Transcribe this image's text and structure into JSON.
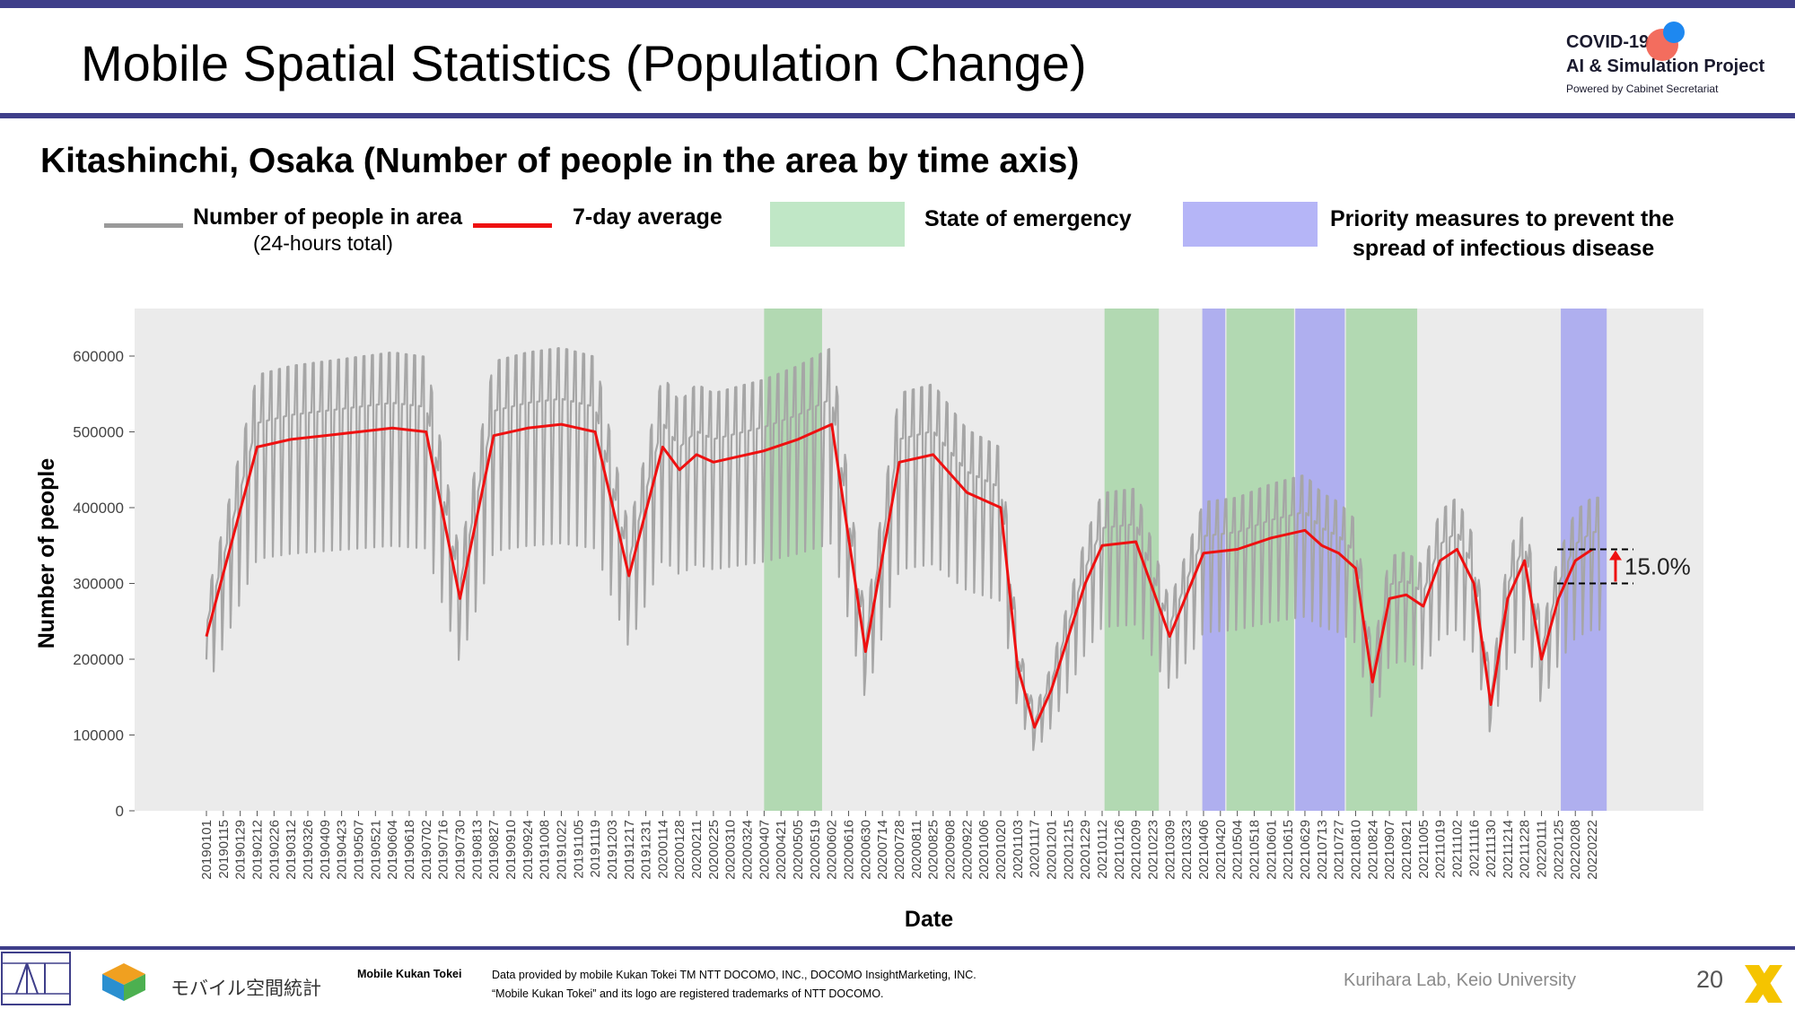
{
  "slide": {
    "title": "Mobile Spatial Statistics (Population Change)",
    "subtitle": "Kitashinchi, Osaka (Number of people in the area by time axis)",
    "page_number": "20",
    "lab": "Kurihara Lab, Keio University"
  },
  "logo": {
    "line1": "COVID-19",
    "line2": "AI & Simulation Project",
    "line3": "Powered by Cabinet Secretariat"
  },
  "legend": {
    "people_label": "Number of people in area",
    "people_sub": "(24-hours total)",
    "avg_label": "7-day average",
    "emergency_label": "State of emergency",
    "priority_label_1": "Priority measures to prevent the",
    "priority_label_2": "spread of infectious disease"
  },
  "footer": {
    "brand": "Mobile Kukan Tokei",
    "brand_jp": "モバイル空間統計",
    "credit1": "Data provided by mobile Kukan Tokei TM NTT DOCOMO, INC., DOCOMO InsightMarketing, INC.",
    "credit2": "“Mobile Kukan Tokei” and its logo are registered trademarks of NTT DOCOMO."
  },
  "colors": {
    "header_bar": "#3f3f8a",
    "daily_line": "#a6a6a6",
    "avg_line": "#ee1111",
    "emergency": "#b5e0b5",
    "priority": "#aaaaf2",
    "plot_bg": "#ebebeb"
  },
  "chart_data": {
    "type": "line",
    "title": "",
    "xlabel": "Date",
    "ylabel": "Number of people",
    "ylim": [
      0,
      660000
    ],
    "yticks": [
      0,
      100000,
      200000,
      300000,
      400000,
      500000,
      600000
    ],
    "ytick_labels": [
      "0",
      "100000",
      "200000",
      "300000",
      "400000",
      "500000",
      "600000"
    ],
    "x_ticks": [
      "20190101",
      "20190115",
      "20190129",
      "20190212",
      "20190226",
      "20190312",
      "20190326",
      "20190409",
      "20190423",
      "20190507",
      "20190521",
      "20190604",
      "20190618",
      "20190702",
      "20190716",
      "20190730",
      "20190813",
      "20190827",
      "20190910",
      "20190924",
      "20191008",
      "20191022",
      "20191105",
      "20191119",
      "20191203",
      "20191217",
      "20191231",
      "20200114",
      "20200128",
      "20200211",
      "20200225",
      "20200310",
      "20200324",
      "20200407",
      "20200421",
      "20200505",
      "20200519",
      "20200602",
      "20200616",
      "20200630",
      "20200714",
      "20200728",
      "20200811",
      "20200825",
      "20200908",
      "20200922",
      "20201006",
      "20201020",
      "20201103",
      "20201117",
      "20201201",
      "20201215",
      "20201229",
      "20210112",
      "20210126",
      "20210209",
      "20210223",
      "20210309",
      "20210323",
      "20210406",
      "20210420",
      "20210504",
      "20210518",
      "20210601",
      "20210615",
      "20210629",
      "20210713",
      "20210727",
      "20210810",
      "20210824",
      "20210907",
      "20210921",
      "20211005",
      "20211019",
      "20211102",
      "20211116",
      "20211130",
      "20211214",
      "20211228",
      "20220111",
      "20220125",
      "20220208",
      "20220222"
    ],
    "grid": false,
    "series": [
      {
        "name": "7-day average",
        "anchors_index": [
          0,
          3,
          5,
          7,
          9,
          11,
          13,
          15,
          17,
          19,
          21,
          23,
          25,
          27,
          28,
          29,
          30,
          33,
          35,
          37,
          39,
          41,
          43,
          45,
          47,
          48,
          49,
          50,
          52,
          53,
          55,
          57,
          59,
          61,
          63,
          65,
          66,
          67,
          68,
          69,
          70,
          71,
          72,
          73,
          74,
          75,
          76,
          77,
          78,
          79,
          80,
          81,
          82
        ],
        "values": [
          230000,
          480000,
          490000,
          495000,
          500000,
          505000,
          500000,
          280000,
          495000,
          505000,
          510000,
          500000,
          310000,
          480000,
          450000,
          470000,
          460000,
          475000,
          490000,
          510000,
          210000,
          460000,
          470000,
          420000,
          400000,
          190000,
          110000,
          160000,
          300000,
          350000,
          355000,
          230000,
          340000,
          345000,
          360000,
          370000,
          350000,
          340000,
          320000,
          170000,
          280000,
          285000,
          270000,
          330000,
          345000,
          300000,
          140000,
          280000,
          330000,
          200000,
          280000,
          330000,
          345000
        ]
      },
      {
        "name": "Number of people in area",
        "note": "24-hours total, daily values oscillating weekly",
        "weekly_peak_approx": [
          480000,
          590000,
          600000,
          560000,
          620000,
          620000,
          600000,
          560000,
          410000,
          250000,
          420000,
          440000,
          450000,
          460000,
          350000,
          350000,
          420000,
          410000,
          440000,
          490000,
          380000
        ]
      }
    ],
    "shaded_periods": [
      {
        "type": "State of emergency",
        "start": "20200407",
        "end": "20200525"
      },
      {
        "type": "State of emergency",
        "start": "20210114",
        "end": "20210228"
      },
      {
        "type": "Priority measures to prevent the spread of infectious disease",
        "start": "20210405",
        "end": "20210424"
      },
      {
        "type": "State of emergency",
        "start": "20210425",
        "end": "20210620"
      },
      {
        "type": "Priority measures to prevent the spread of infectious disease",
        "start": "20210621",
        "end": "20210801"
      },
      {
        "type": "State of emergency",
        "start": "20210802",
        "end": "20210930"
      },
      {
        "type": "Priority measures to prevent the spread of infectious disease",
        "start": "20220127",
        "end": "20220306"
      }
    ],
    "annotation": {
      "text": "15.0%",
      "from": 300000,
      "to": 345000
    }
  }
}
